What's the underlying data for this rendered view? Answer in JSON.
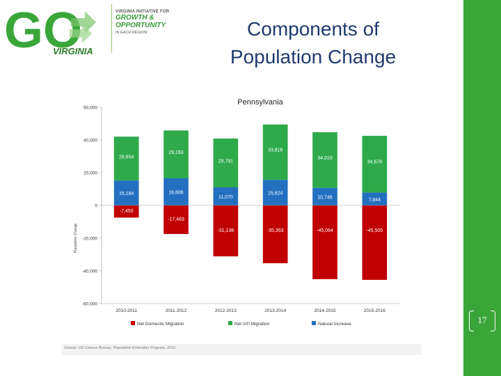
{
  "slide": {
    "title_line1": "Components of",
    "title_line2": "Population Change",
    "page_number": "17",
    "source": "Source: US Census Bureau, Population Estimates Program, 2016"
  },
  "logo": {
    "go_text": "GO",
    "state_text": "VIRGINIA",
    "tagline_line1": "VIRGINIA INITIATIVE FOR",
    "tagline_line2": "GROWTH &",
    "tagline_line3": "OPPORTUNITY",
    "tagline_line4": "IN EACH REGION"
  },
  "colors": {
    "green_bar": "#3aa63a",
    "title_blue": "#1f3a6e",
    "net_domestic": "#c00000",
    "net_intl": "#2eaa4a",
    "natural_increase": "#2470c0"
  },
  "chart_data": {
    "type": "bar",
    "stacked": true,
    "title": "Pennsylvania",
    "ylabel": "Population Change",
    "ylim": [
      -60000,
      60000
    ],
    "yticks": [
      -60000,
      -40000,
      -20000,
      0,
      20000,
      40000,
      60000
    ],
    "ytick_labels": [
      "-60,000",
      "-40,000",
      "-20,000",
      "0",
      "20,000",
      "40,000",
      "60,000"
    ],
    "categories": [
      "2010-2011",
      "2011-2012",
      "2012-2013",
      "2013-2014",
      "2014-2015",
      "2015-2016"
    ],
    "series": [
      {
        "name": "Net Domestic Migration",
        "color": "#c00000",
        "values": [
          -7450,
          -17463,
          -31138,
          -35353,
          -45064,
          -45505
        ],
        "labels": [
          "-7,450",
          "-17,463",
          "-31,138",
          "-35,353",
          "-45,064",
          "-45,505"
        ]
      },
      {
        "name": "Natural Increase",
        "color": "#2470c0",
        "values": [
          15184,
          16606,
          11070,
          15624,
          10746,
          7844
        ],
        "labels": [
          "15,184",
          "16,606",
          "11,070",
          "15,624",
          "10,746",
          "7,844"
        ]
      },
      {
        "name": "Net Int'l Migration",
        "color": "#2eaa4a",
        "values": [
          26854,
          29193,
          29791,
          33818,
          34010,
          34678
        ],
        "labels": [
          "26,854",
          "29,193",
          "29,791",
          "33,818",
          "34,010",
          "34,678"
        ]
      }
    ],
    "legend": [
      {
        "name": "Net Domestic Migration",
        "color": "#c00000"
      },
      {
        "name": "Net Int'l Migration",
        "color": "#2eaa4a"
      },
      {
        "name": "Natural Increase",
        "color": "#2470c0"
      }
    ],
    "legend_position": "bottom"
  }
}
